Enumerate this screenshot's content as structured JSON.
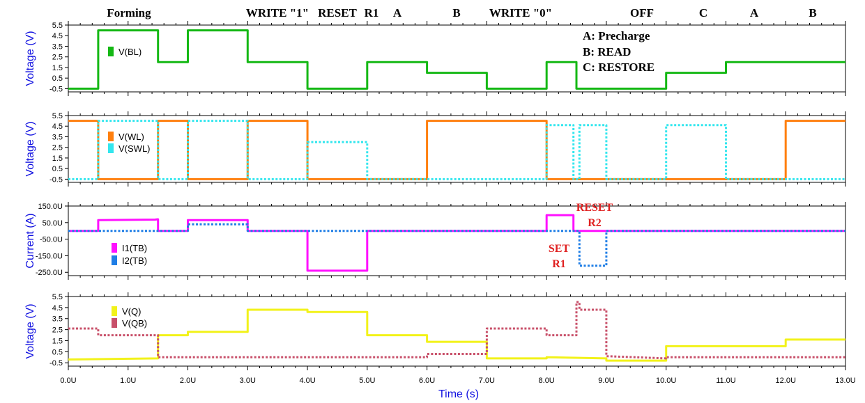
{
  "phase_labels": [
    "Forming",
    "WRITE \"1\"",
    "RESET",
    "R1",
    "A",
    "B",
    "WRITE \"0\"",
    "OFF",
    "C",
    "A",
    "B"
  ],
  "notes": [
    "A: Precharge",
    "B: READ",
    "C: RESTORE"
  ],
  "annotations": {
    "reset": "RESET",
    "r2": "R2",
    "set": "SET",
    "r1": "R1"
  },
  "colors": {
    "bl": "#14b814",
    "wl": "#ff7f0e",
    "swl": "#33e6ee",
    "i1": "#ff10ff",
    "i2": "#1f7ee6",
    "q": "#f2f21a",
    "qb": "#c8506a",
    "axis_label": "#1010e0"
  },
  "chart_data": [
    {
      "type": "line",
      "ylabel": "Voltage (V)",
      "ylim": [
        -0.8,
        5.5
      ],
      "yticks": [
        "5.5",
        "4.5",
        "3.5",
        "2.5",
        "1.5",
        "0.5",
        "-0.5"
      ],
      "xlim": [
        0,
        13
      ],
      "series": [
        {
          "name": "V(BL)",
          "style": "solid",
          "x": [
            0,
            0.5,
            0.5,
            1.5,
            1.5,
            2,
            2,
            3,
            3,
            4,
            4,
            5,
            5,
            6,
            6,
            7,
            7,
            8,
            8,
            8.5,
            8.5,
            10,
            10,
            11,
            11,
            13
          ],
          "y": [
            -0.5,
            -0.5,
            5,
            5,
            2,
            2,
            5,
            5,
            2,
            2,
            -0.5,
            -0.5,
            2,
            2,
            1,
            1,
            -0.5,
            -0.5,
            2,
            2,
            -0.5,
            -0.5,
            1,
            1,
            2,
            2
          ]
        }
      ]
    },
    {
      "type": "line",
      "ylabel": "Voltage (V)",
      "ylim": [
        -0.8,
        5.5
      ],
      "yticks": [
        "5.5",
        "4.5",
        "3.5",
        "2.5",
        "1.5",
        "0.5",
        "-0.5"
      ],
      "xlim": [
        0,
        13
      ],
      "series": [
        {
          "name": "V(WL)",
          "style": "solid",
          "x": [
            0,
            0.5,
            0.5,
            1.5,
            1.5,
            2,
            2,
            3,
            3,
            4,
            4,
            6,
            6,
            8,
            8,
            12,
            12,
            13
          ],
          "y": [
            5,
            5,
            -0.5,
            -0.5,
            5,
            5,
            -0.5,
            -0.5,
            5,
            5,
            -0.5,
            -0.5,
            5,
            5,
            -0.5,
            -0.5,
            5,
            5
          ]
        },
        {
          "name": "V(SWL)",
          "style": "dotted",
          "x": [
            0,
            0.5,
            0.5,
            1.5,
            1.5,
            2,
            2,
            3,
            3,
            4,
            4,
            5,
            5,
            8,
            8,
            8.45,
            8.45,
            8.55,
            8.55,
            9,
            9,
            10,
            10,
            11,
            11,
            13
          ],
          "y": [
            -0.5,
            -0.5,
            5,
            5,
            -0.5,
            -0.5,
            5,
            5,
            -0.5,
            -0.5,
            3,
            3,
            -0.5,
            -0.5,
            4.6,
            4.6,
            -0.5,
            -0.5,
            4.6,
            4.6,
            -0.5,
            -0.5,
            4.6,
            4.6,
            -0.5,
            -0.5
          ]
        }
      ]
    },
    {
      "type": "line",
      "ylabel": "Current (A)",
      "ylim": [
        -270,
        150
      ],
      "yticks": [
        "150.0U",
        "50.0U",
        "-50.0U",
        "-150.0U",
        "-250.0U"
      ],
      "xlim": [
        0,
        13
      ],
      "series": [
        {
          "name": "I1(TB)",
          "style": "solid",
          "x": [
            0,
            0.5,
            0.5,
            1.45,
            1.5,
            1.5,
            2,
            2,
            3,
            3,
            4,
            4,
            5,
            5,
            8,
            8,
            8.45,
            8.45,
            13
          ],
          "y": [
            0,
            0,
            65,
            68,
            70,
            0,
            0,
            65,
            65,
            0,
            0,
            -240,
            -240,
            0,
            0,
            95,
            95,
            0,
            0
          ]
        },
        {
          "name": "I2(TB)",
          "style": "dotted",
          "x": [
            0,
            2,
            2,
            3,
            3,
            8.55,
            8.55,
            9,
            9,
            13
          ],
          "y": [
            0,
            0,
            40,
            40,
            0,
            0,
            -210,
            -210,
            0,
            0
          ]
        }
      ]
    },
    {
      "type": "line",
      "ylabel": "Voltage (V)",
      "ylim": [
        -0.8,
        5.5
      ],
      "yticks": [
        "5.5",
        "4.5",
        "3.5",
        "2.5",
        "1.5",
        "0.5",
        "-0.5"
      ],
      "xlim": [
        0,
        13
      ],
      "xticks": [
        "0.0U",
        "1.0U",
        "2.0U",
        "3.0U",
        "4.0U",
        "5.0U",
        "6.0U",
        "7.0U",
        "8.0U",
        "9.0U",
        "10.0U",
        "11.0U",
        "12.0U",
        "13.0U"
      ],
      "xlabel": "Time (s)",
      "series": [
        {
          "name": "V(Q)",
          "style": "solid",
          "x": [
            0,
            1.5,
            1.5,
            2,
            2,
            3,
            3,
            4,
            4,
            5,
            5,
            6,
            6,
            7,
            7,
            8,
            8,
            9,
            9,
            10,
            10,
            12,
            12,
            13
          ],
          "y": [
            -0.2,
            -0.1,
            2,
            2,
            2.3,
            2.3,
            4.3,
            4.3,
            4.1,
            4.1,
            2,
            2,
            1.4,
            1.4,
            -0.1,
            -0.1,
            0,
            -0.1,
            -0.3,
            -0.3,
            1,
            1,
            1.6,
            1.6
          ]
        },
        {
          "name": "V(QB)",
          "style": "dotted",
          "x": [
            0,
            0.5,
            0.5,
            1.5,
            1.5,
            6,
            6,
            7,
            7,
            8,
            8,
            8.5,
            8.5,
            8.55,
            8.55,
            9,
            9,
            10,
            10,
            13
          ],
          "y": [
            2.6,
            2.6,
            2,
            2,
            0,
            0,
            0.3,
            0.3,
            2.6,
            2.6,
            2,
            2,
            5,
            5,
            4.3,
            4.3,
            0.1,
            -0.1,
            0,
            0
          ]
        }
      ]
    }
  ]
}
